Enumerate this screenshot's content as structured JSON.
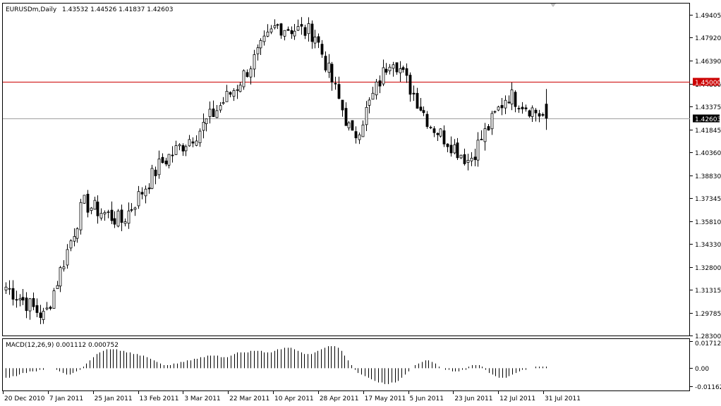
{
  "chart_data": [
    {
      "type": "candlestick",
      "title": "EURUSDm,Daily",
      "ohlc_label": "1.43532 1.44526 1.41837 1.42603",
      "last_ohlc": {
        "open": 1.43532,
        "high": 1.44526,
        "low": 1.41837,
        "close": 1.42603
      },
      "ylim": [
        1.283,
        1.5015
      ],
      "y_ticks": [
        "1.49405",
        "1.47920",
        "1.46390",
        "1.44860",
        "1.43375",
        "1.41845",
        "1.40360",
        "1.38830",
        "1.37345",
        "1.35810",
        "1.34330",
        "1.32800",
        "1.31315",
        "1.29785",
        "1.28300"
      ],
      "x_ticks": [
        "20 Dec 2010",
        "7 Jan 2011",
        "25 Jan 2011",
        "13 Feb 2011",
        "3 Mar 2011",
        "22 Mar 2011",
        "10 Apr 2011",
        "28 Apr 2011",
        "17 May 2011",
        "5 Jun 2011",
        "23 Jun 2011",
        "12 Jul 2011",
        "31 Jul 2011"
      ],
      "resistance_line": {
        "value": 1.45,
        "label": "1.45000",
        "color": "#cc0000"
      },
      "current_price": {
        "value": 1.42603,
        "label": "1.42603",
        "color": "#000000"
      },
      "bar_count": 160,
      "key_points": [
        {
          "x": "20 Dec 2010",
          "close": 1.315
        },
        {
          "x": "5 Jan 2011",
          "close": 1.295
        },
        {
          "x": "25 Jan 2011",
          "close": 1.37
        },
        {
          "x": "7 Feb 2011",
          "close": 1.358
        },
        {
          "x": "3 Mar 2011",
          "close": 1.396
        },
        {
          "x": "22 Mar 2011",
          "close": 1.418
        },
        {
          "x": "10 Apr 2011",
          "close": 1.448
        },
        {
          "x": "28 Apr 2011",
          "close": 1.487
        },
        {
          "x": "4 May 2011",
          "close": 1.482
        },
        {
          "x": "17 May 2011",
          "close": 1.412
        },
        {
          "x": "5 Jun 2011",
          "close": 1.468
        },
        {
          "x": "23 Jun 2011",
          "close": 1.422
        },
        {
          "x": "12 Jul 2011",
          "close": 1.398
        },
        {
          "x": "25 Jul 2011",
          "close": 1.442
        },
        {
          "x": "31 Jul 2011",
          "close": 1.426
        }
      ]
    },
    {
      "type": "histogram",
      "title": "MACD(12,26,9) 0.001112 0.000752",
      "y_ticks": [
        "0.017127",
        "0.00",
        "-0.011621"
      ],
      "ylim": [
        -0.0141,
        0.0185
      ],
      "values": [
        -0.006,
        -0.006,
        -0.005,
        -0.005,
        -0.004,
        -0.003,
        -0.003,
        -0.002,
        -0.002,
        -0.002,
        -0.001,
        -0.001,
        0.0,
        0.0,
        0.0,
        -0.001,
        -0.002,
        -0.003,
        -0.004,
        -0.004,
        -0.003,
        -0.002,
        -0.001,
        0.001,
        0.003,
        0.005,
        0.007,
        0.009,
        0.01,
        0.011,
        0.012,
        0.012,
        0.012,
        0.012,
        0.011,
        0.011,
        0.01,
        0.01,
        0.009,
        0.009,
        0.008,
        0.008,
        0.007,
        0.006,
        0.005,
        0.004,
        0.003,
        0.002,
        0.002,
        0.002,
        0.003,
        0.003,
        0.004,
        0.004,
        0.005,
        0.005,
        0.006,
        0.006,
        0.007,
        0.007,
        0.008,
        0.008,
        0.008,
        0.008,
        0.007,
        0.007,
        0.007,
        0.008,
        0.009,
        0.01,
        0.01,
        0.01,
        0.01,
        0.011,
        0.011,
        0.011,
        0.011,
        0.01,
        0.01,
        0.01,
        0.011,
        0.012,
        0.012,
        0.013,
        0.013,
        0.013,
        0.012,
        0.011,
        0.01,
        0.009,
        0.009,
        0.009,
        0.01,
        0.011,
        0.012,
        0.013,
        0.014,
        0.014,
        0.014,
        0.013,
        0.011,
        0.008,
        0.005,
        0.002,
        -0.001,
        -0.003,
        -0.004,
        -0.005,
        -0.006,
        -0.007,
        -0.008,
        -0.009,
        -0.009,
        -0.01,
        -0.01,
        -0.009,
        -0.009,
        -0.008,
        -0.006,
        -0.004,
        -0.002,
        0.0,
        0.002,
        0.003,
        0.004,
        0.005,
        0.005,
        0.004,
        0.003,
        0.001,
        0.0,
        -0.001,
        -0.001,
        -0.002,
        -0.002,
        -0.002,
        -0.001,
        -0.001,
        0.001,
        0.002,
        0.002,
        0.002,
        0.001,
        -0.001,
        -0.003,
        -0.004,
        -0.005,
        -0.006,
        -0.006,
        -0.006,
        -0.005,
        -0.004,
        -0.003,
        -0.002,
        -0.001,
        -0.001,
        0.0,
        0.0,
        0.001,
        0.001,
        0.001,
        0.001
      ]
    }
  ]
}
